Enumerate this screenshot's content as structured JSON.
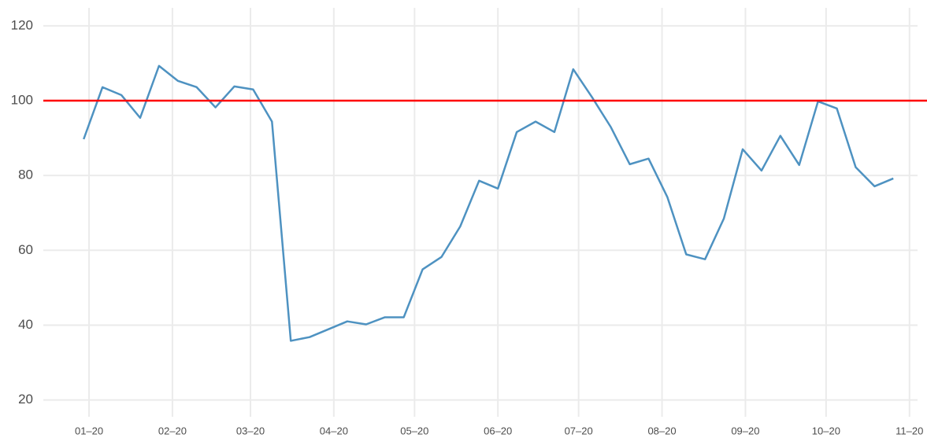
{
  "chart_data": {
    "type": "line",
    "x": [
      -2,
      5,
      12,
      19,
      26,
      33,
      40,
      47,
      54,
      61,
      68,
      75,
      82,
      89,
      96,
      103,
      110,
      117,
      124,
      131,
      138,
      145,
      152,
      159,
      166,
      173,
      180,
      187,
      194,
      201,
      208,
      215,
      222,
      229,
      236,
      243,
      250,
      257,
      264,
      271,
      278,
      285,
      292,
      299
    ],
    "series": [
      {
        "color": "#4e92c1",
        "values": [
          89.7,
          103.6,
          101.5,
          95.4,
          109.3,
          105.3,
          103.6,
          98.2,
          103.8,
          103,
          94.4,
          35.8,
          36.8,
          38.9,
          41,
          40.2,
          42.1,
          42.1,
          54.9,
          58.2,
          66.4,
          78.6,
          76.5,
          91.6,
          94.4,
          91.6,
          108.4,
          100.9,
          92.9,
          83,
          84.5,
          74.2,
          58.9,
          57.6,
          68.5,
          87,
          81.3,
          90.6,
          82.8,
          99.8,
          97.9,
          82.2,
          77.1,
          79.2
        ]
      }
    ],
    "reference_line": {
      "value": 100,
      "color": "#ff0000"
    },
    "xlim": [
      -17,
      308
    ],
    "xticks": [
      {
        "value": 0,
        "label": "01–20"
      },
      {
        "value": 31,
        "label": "02–20"
      },
      {
        "value": 60,
        "label": "03–20"
      },
      {
        "value": 91,
        "label": "04–20"
      },
      {
        "value": 121,
        "label": "05–20"
      },
      {
        "value": 152,
        "label": "06–20"
      },
      {
        "value": 182,
        "label": "07–20"
      },
      {
        "value": 213,
        "label": "08–20"
      },
      {
        "value": 244,
        "label": "09–20"
      },
      {
        "value": 274,
        "label": "10–20"
      },
      {
        "value": 305,
        "label": "11–20"
      }
    ],
    "ylim": [
      15.5,
      124.8
    ],
    "yticks": [
      20,
      40,
      60,
      80,
      100,
      120
    ],
    "grid": true
  }
}
